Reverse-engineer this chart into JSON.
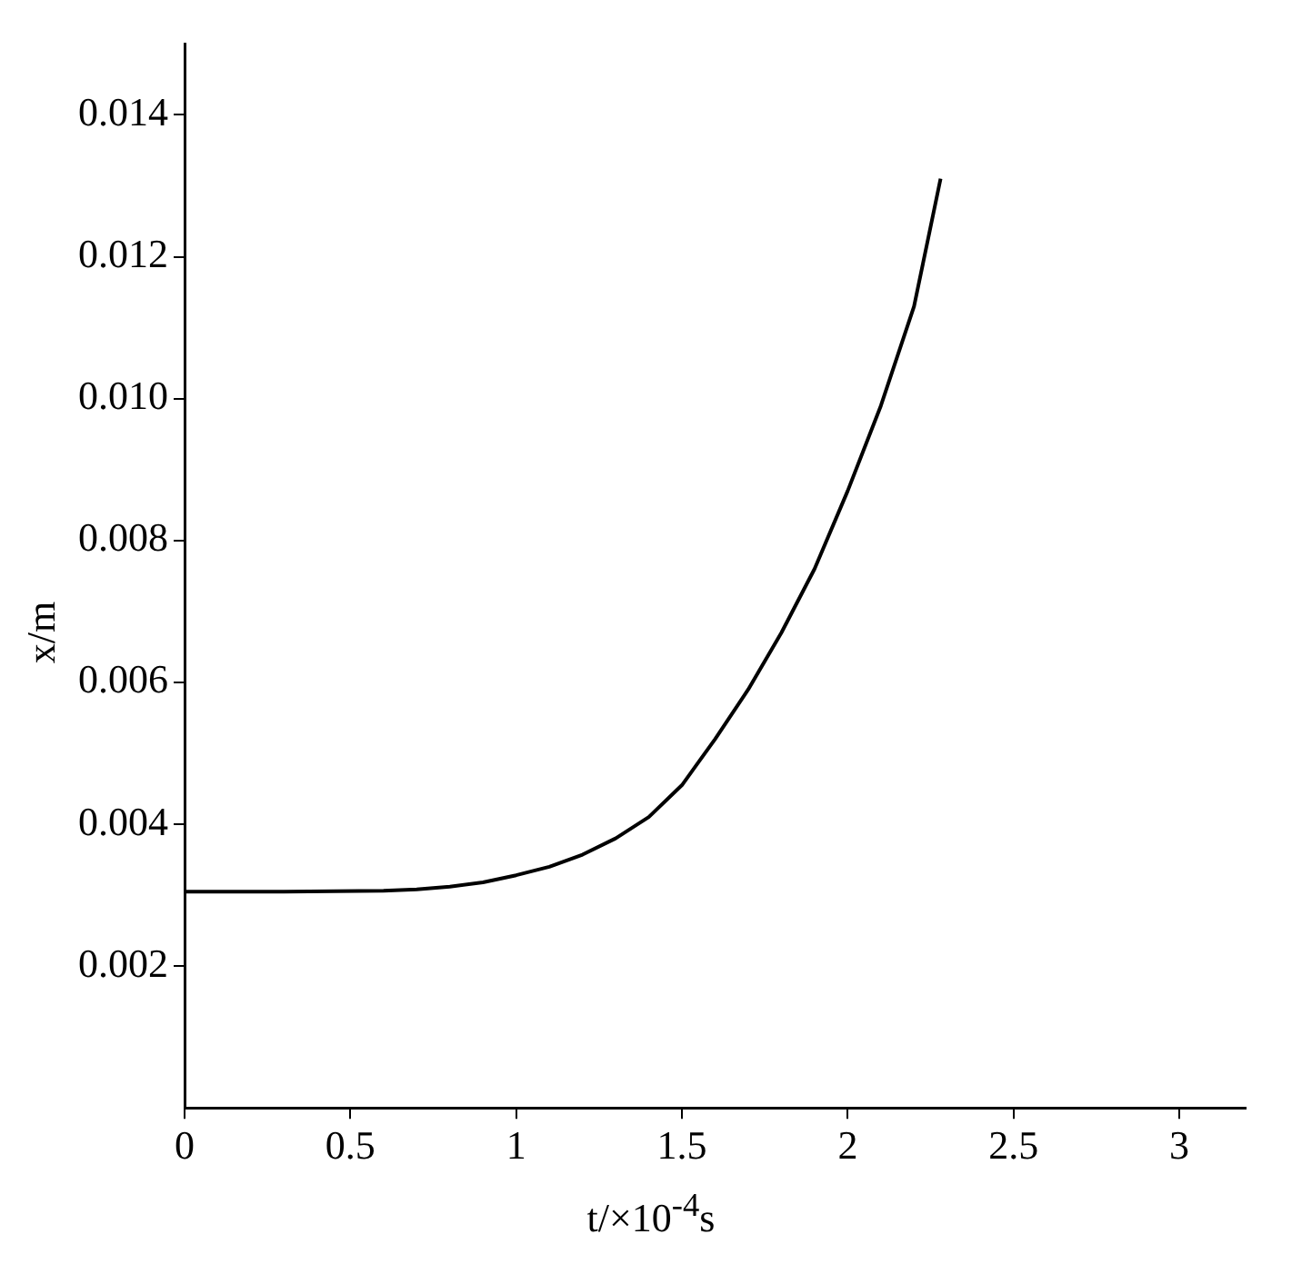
{
  "chart_data": {
    "type": "line",
    "xlabel": "t/×10$^{-4}$s",
    "ylabel": "x/m",
    "x": [
      0,
      0.3,
      0.6,
      0.7,
      0.8,
      0.9,
      1,
      1.1,
      1.2,
      1.3,
      1.4,
      1.5,
      1.6,
      1.7,
      1.8,
      1.9,
      2,
      2.1,
      2.2,
      2.28
    ],
    "values": [
      0.00305,
      0.00305,
      0.00306,
      0.00308,
      0.00312,
      0.00318,
      0.00328,
      0.0034,
      0.00357,
      0.0038,
      0.0041,
      0.00455,
      0.0052,
      0.0059,
      0.0067,
      0.0076,
      0.0087,
      0.0099,
      0.0113,
      0.0131
    ],
    "color": "#000000",
    "xlim": [
      0,
      3.2
    ],
    "ylim": [
      0,
      0.015
    ],
    "xticks": [
      0,
      0.5,
      1,
      1.5,
      2,
      2.5,
      3
    ],
    "yticks": [
      0.002,
      0.004,
      0.006,
      0.008,
      {
        "value": 0.01,
        "label": "0.010"
      },
      0.012,
      0.014
    ],
    "grid": false,
    "legend": false,
    "marker": "none",
    "line_style": "solid"
  }
}
